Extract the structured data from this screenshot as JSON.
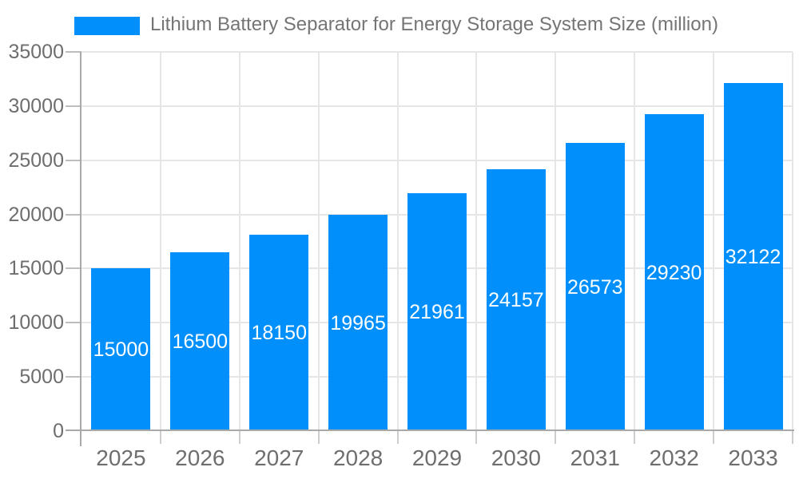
{
  "legend": {
    "label": "Lithium Battery Separator for Energy Storage System Size (million)",
    "swatch_color": "#008FFB"
  },
  "chart_data": {
    "type": "bar",
    "title": "Lithium Battery Separator for Energy Storage System Size (million)",
    "categories": [
      "2025",
      "2026",
      "2027",
      "2028",
      "2029",
      "2030",
      "2031",
      "2032",
      "2033"
    ],
    "series": [
      {
        "name": "Lithium Battery Separator for Energy Storage System Size (million)",
        "values": [
          15000,
          16500,
          18150,
          19965,
          21961,
          24157,
          26573,
          29230,
          32122
        ]
      }
    ],
    "value_labels": [
      15000,
      16500,
      18150,
      19965,
      21961,
      24157,
      26573,
      29230,
      32122
    ],
    "xlabel": "",
    "ylabel": "",
    "ylim": [
      0,
      35000
    ],
    "yticks": [
      0,
      5000,
      10000,
      15000,
      20000,
      25000,
      30000,
      35000
    ],
    "grid": "horizontal-and-vertical",
    "legend_position": "top-left",
    "bar_color": "#008FFB",
    "value_label_color": "#ffffff",
    "value_label_position": "inside-center"
  },
  "colors": {
    "bar": "#008FFB",
    "gridline": "#e6e6e6",
    "axis_line": "#a9a9a9",
    "axis_text": "#6e6e6e",
    "title_text": "#757575",
    "background": "#ffffff"
  }
}
